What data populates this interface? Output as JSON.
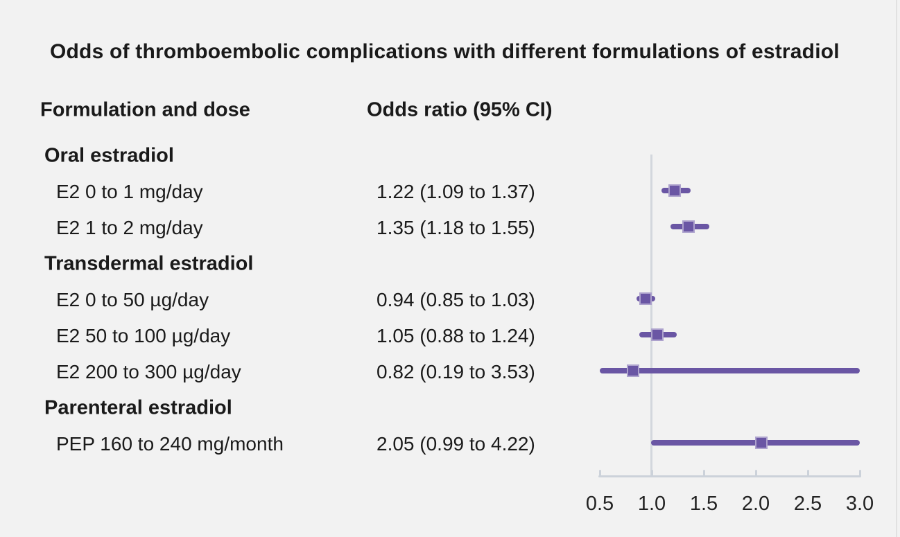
{
  "title": "Odds of thromboembolic complications with different formulations of estradiol",
  "columns": {
    "formulation": "Formulation and dose",
    "odds_ratio": "Odds ratio (95% CI)"
  },
  "rows": [
    {
      "kind": "group",
      "label": "Oral estradiol"
    },
    {
      "kind": "item",
      "label": "E2 0 to 1 mg/day",
      "value": "1.22 (1.09 to 1.37)",
      "or": 1.22,
      "lo": 1.09,
      "hi": 1.37
    },
    {
      "kind": "item",
      "label": "E2 1 to 2 mg/day",
      "value": "1.35 (1.18 to 1.55)",
      "or": 1.35,
      "lo": 1.18,
      "hi": 1.55
    },
    {
      "kind": "group",
      "label": "Transdermal estradiol"
    },
    {
      "kind": "item",
      "label": "E2 0 to 50 µg/day",
      "value": "0.94 (0.85 to 1.03)",
      "or": 0.94,
      "lo": 0.85,
      "hi": 1.03
    },
    {
      "kind": "item",
      "label": "E2 50 to 100 µg/day",
      "value": "1.05 (0.88 to 1.24)",
      "or": 1.05,
      "lo": 0.88,
      "hi": 1.24
    },
    {
      "kind": "item",
      "label": "E2 200 to 300 µg/day",
      "value": "0.82 (0.19 to 3.53)",
      "or": 0.82,
      "lo": 0.19,
      "hi": 3.53
    },
    {
      "kind": "group",
      "label": "Parenteral estradiol"
    },
    {
      "kind": "item",
      "label": "PEP 160 to 240 mg/month",
      "value": "2.05 (0.99 to 4.22)",
      "or": 2.05,
      "lo": 0.99,
      "hi": 4.22
    }
  ],
  "axis": {
    "tick_labels": [
      "0.5",
      "1.0",
      "1.5",
      "2.0",
      "2.5",
      "3.0"
    ],
    "min": 0.5,
    "max": 3.0,
    "reference": 1.0
  },
  "colors": {
    "background": "#f2f2f2",
    "text": "#1a1a1a",
    "marker_purple": "#6a56a4",
    "axis_line": "#ccd2da",
    "reference_line": "#d3d7dd"
  },
  "chart_data": {
    "type": "scatter",
    "style": "forest_plot",
    "title": "Odds of thromboembolic complications with different formulations of estradiol",
    "xlabel": "Odds ratio (95% CI)",
    "xlim": [
      0.5,
      3.0
    ],
    "x_ticks": [
      0.5,
      1.0,
      1.5,
      2.0,
      2.5,
      3.0
    ],
    "reference_line_x": 1.0,
    "ci_clipped_to_xlim": true,
    "grid": false,
    "legend": false,
    "groups": [
      "Oral estradiol",
      "Transdermal estradiol",
      "Parenteral estradiol"
    ],
    "points": [
      {
        "group": "Oral estradiol",
        "label": "E2 0 to 1 mg/day",
        "or": 1.22,
        "ci_low": 1.09,
        "ci_high": 1.37
      },
      {
        "group": "Oral estradiol",
        "label": "E2 1 to 2 mg/day",
        "or": 1.35,
        "ci_low": 1.18,
        "ci_high": 1.55
      },
      {
        "group": "Transdermal estradiol",
        "label": "E2 0 to 50 µg/day",
        "or": 0.94,
        "ci_low": 0.85,
        "ci_high": 1.03
      },
      {
        "group": "Transdermal estradiol",
        "label": "E2 50 to 100 µg/day",
        "or": 1.05,
        "ci_low": 0.88,
        "ci_high": 1.24
      },
      {
        "group": "Transdermal estradiol",
        "label": "E2 200 to 300 µg/day",
        "or": 0.82,
        "ci_low": 0.19,
        "ci_high": 3.53
      },
      {
        "group": "Parenteral estradiol",
        "label": "PEP 160 to 240 mg/month",
        "or": 2.05,
        "ci_low": 0.99,
        "ci_high": 4.22
      }
    ]
  }
}
